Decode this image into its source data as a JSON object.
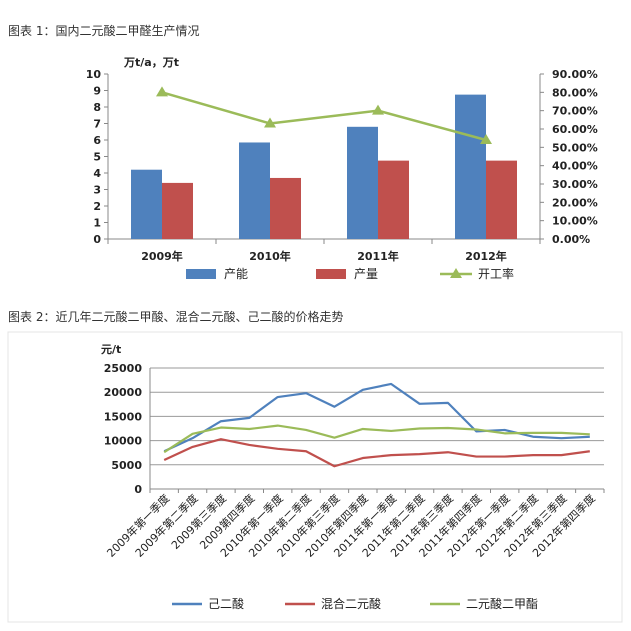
{
  "captions": {
    "chart1": "图表 1：国内二元酸二甲醛生产情况",
    "chart2": "图表 2：近几年二元酸二甲酸、混合二元酸、己二酸的价格走势"
  },
  "chart_data": [
    {
      "type": "bar",
      "title": "",
      "ylabel": "万t/a，万t",
      "categories": [
        "2009年",
        "2010年",
        "2011年",
        "2012年"
      ],
      "ylim": [
        0,
        10
      ],
      "yticks": [
        0,
        1,
        2,
        3,
        4,
        5,
        6,
        7,
        8,
        9,
        10
      ],
      "y2lim": [
        0,
        90
      ],
      "y2ticks": [
        "0.00%",
        "10.00%",
        "20.00%",
        "30.00%",
        "40.00%",
        "50.00%",
        "60.00%",
        "70.00%",
        "80.00%",
        "90.00%"
      ],
      "grid": false,
      "legend_position": "bottom",
      "series": [
        {
          "name": "产能",
          "kind": "bar",
          "axis": "left",
          "color": "#4F81BD",
          "values": [
            4.2,
            5.85,
            6.8,
            8.75
          ]
        },
        {
          "name": "产量",
          "kind": "bar",
          "axis": "left",
          "color": "#C0504D",
          "values": [
            3.4,
            3.7,
            4.75,
            4.75
          ]
        },
        {
          "name": "开工率",
          "kind": "line",
          "axis": "right",
          "color": "#9BBB59",
          "marker": "triangle",
          "values": [
            80.0,
            63.0,
            70.0,
            54.0
          ]
        }
      ]
    },
    {
      "type": "line",
      "title": "",
      "ylabel": "元/t",
      "categories": [
        "2009年第一季度",
        "2009年第二季度",
        "2009第三季度",
        "2009第四季度",
        "2010年第一季度",
        "2010年第二季度",
        "2010年第三季度",
        "2010年第四季度",
        "2011年第一季度",
        "2011年第二季度",
        "2011年第三季度",
        "2011年第四季度",
        "2012年第一季度",
        "2012年第二季度",
        "2012年第三季度",
        "2012年第四季度"
      ],
      "ylim": [
        0,
        25000
      ],
      "yticks": [
        0,
        5000,
        10000,
        15000,
        20000,
        25000
      ],
      "grid": true,
      "legend_position": "bottom",
      "series": [
        {
          "name": "己二酸",
          "color": "#4F81BD",
          "values": [
            7800,
            10500,
            14000,
            14700,
            19000,
            19800,
            17000,
            20500,
            21700,
            17600,
            17800,
            11900,
            12200,
            10800,
            10500,
            10800
          ]
        },
        {
          "name": "混合二元酸",
          "color": "#C0504D",
          "values": [
            6000,
            8700,
            10300,
            9100,
            8300,
            7800,
            4700,
            6400,
            7000,
            7200,
            7600,
            6700,
            6700,
            7000,
            7000,
            7800
          ]
        },
        {
          "name": "二元酸二甲酯",
          "color": "#9BBB59",
          "values": [
            7600,
            11400,
            12700,
            12400,
            13100,
            12200,
            10600,
            12400,
            12000,
            12500,
            12600,
            12300,
            11500,
            11600,
            11600,
            11300
          ]
        }
      ]
    }
  ]
}
